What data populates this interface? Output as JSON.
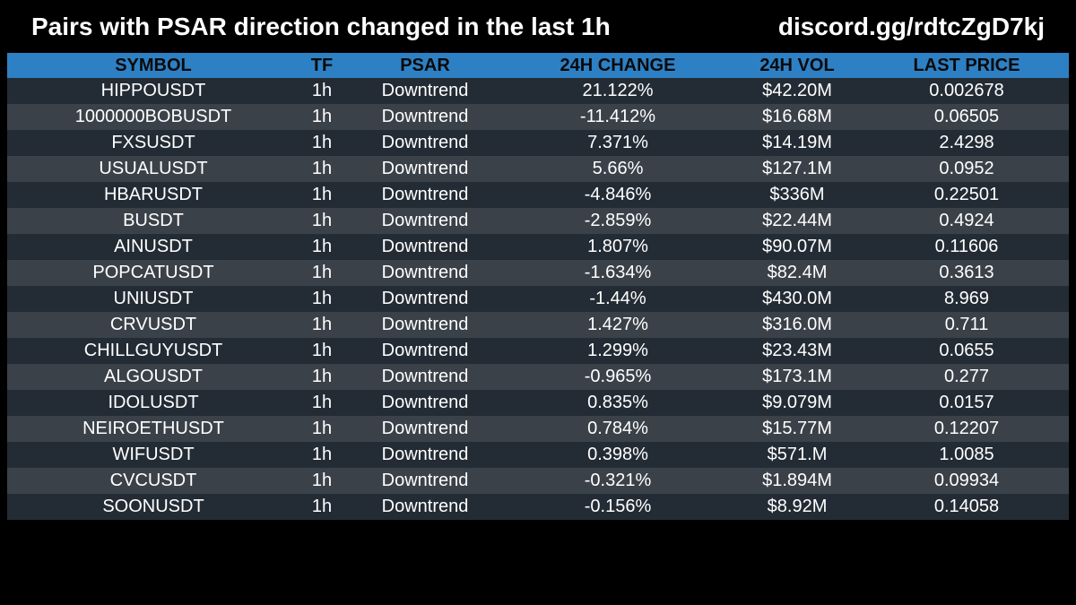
{
  "header": {
    "title": "Pairs with PSAR direction changed in the last 1h",
    "discord": "discord.gg/rdtcZgD7kj"
  },
  "table": {
    "columns": [
      "SYMBOL",
      "TF",
      "PSAR",
      "24H CHANGE",
      "24H VOL",
      "LAST PRICE"
    ],
    "rows": [
      [
        "HIPPOUSDT",
        "1h",
        "Downtrend",
        "21.122%",
        "$42.20M",
        "0.002678"
      ],
      [
        "1000000BOBUSDT",
        "1h",
        "Downtrend",
        "-11.412%",
        "$16.68M",
        "0.06505"
      ],
      [
        "FXSUSDT",
        "1h",
        "Downtrend",
        "7.371%",
        "$14.19M",
        "2.4298"
      ],
      [
        "USUALUSDT",
        "1h",
        "Downtrend",
        "5.66%",
        "$127.1M",
        "0.0952"
      ],
      [
        "HBARUSDT",
        "1h",
        "Downtrend",
        "-4.846%",
        "$336M",
        "0.22501"
      ],
      [
        "BUSDT",
        "1h",
        "Downtrend",
        "-2.859%",
        "$22.44M",
        "0.4924"
      ],
      [
        "AINUSDT",
        "1h",
        "Downtrend",
        "1.807%",
        "$90.07M",
        "0.11606"
      ],
      [
        "POPCATUSDT",
        "1h",
        "Downtrend",
        "-1.634%",
        "$82.4M",
        "0.3613"
      ],
      [
        "UNIUSDT",
        "1h",
        "Downtrend",
        "-1.44%",
        "$430.0M",
        "8.969"
      ],
      [
        "CRVUSDT",
        "1h",
        "Downtrend",
        "1.427%",
        "$316.0M",
        "0.711"
      ],
      [
        "CHILLGUYUSDT",
        "1h",
        "Downtrend",
        "1.299%",
        "$23.43M",
        "0.0655"
      ],
      [
        "ALGOUSDT",
        "1h",
        "Downtrend",
        "-0.965%",
        "$173.1M",
        "0.277"
      ],
      [
        "IDOLUSDT",
        "1h",
        "Downtrend",
        "0.835%",
        "$9.079M",
        "0.0157"
      ],
      [
        "NEIROETHUSDT",
        "1h",
        "Downtrend",
        "0.784%",
        "$15.77M",
        "0.12207"
      ],
      [
        "WIFUSDT",
        "1h",
        "Downtrend",
        "0.398%",
        "$571.M",
        "1.0085"
      ],
      [
        "CVCUSDT",
        "1h",
        "Downtrend",
        "-0.321%",
        "$1.894M",
        "0.09934"
      ],
      [
        "SOONUSDT",
        "1h",
        "Downtrend",
        "-0.156%",
        "$8.92M",
        "0.14058"
      ]
    ]
  },
  "colors": {
    "background": "#000000",
    "header_row": "#2e80c4",
    "row_odd": "#232c35",
    "row_even": "#3a4149",
    "text": "#ffffff",
    "header_text": "#0a0a0a"
  }
}
